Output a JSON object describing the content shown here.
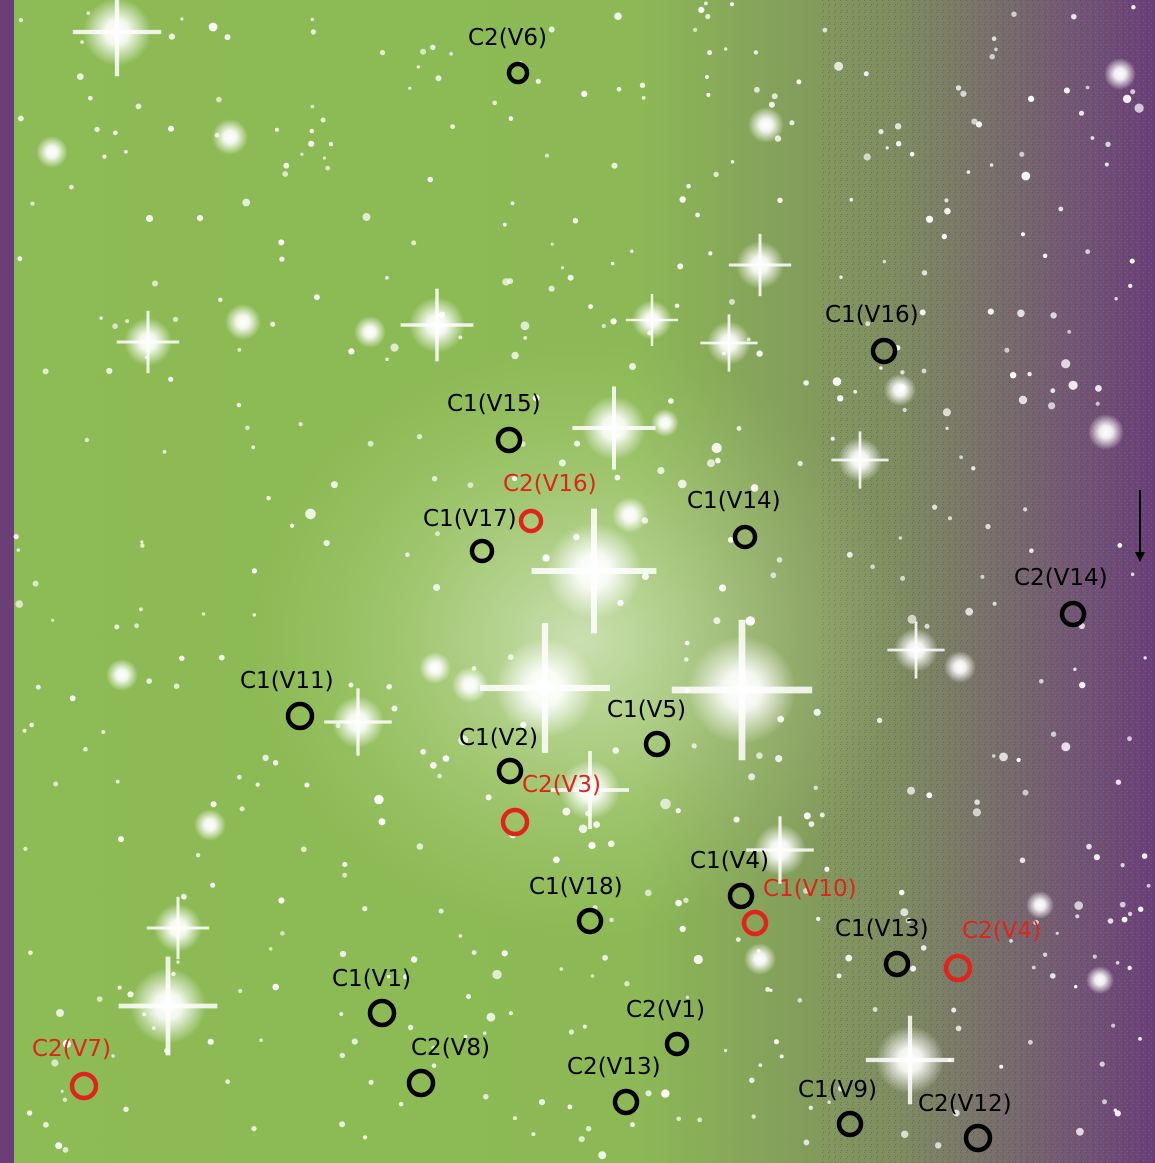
{
  "colors": {
    "field_green": "#8dbb55",
    "field_purple": "#6a3f78",
    "black_marker": "#000000",
    "red_marker": "#e0241b",
    "star": "#ffffff"
  },
  "markers": [
    {
      "id": "m-c2-v6",
      "label": "C2(V6)",
      "color": "black"
    },
    {
      "id": "m-c1-v16",
      "label": "C1(V16)",
      "color": "black"
    },
    {
      "id": "m-c1-v15",
      "label": "C1(V15)",
      "color": "black"
    },
    {
      "id": "m-c2-v16",
      "label": "C2(V16)",
      "color": "red"
    },
    {
      "id": "m-c1-v17",
      "label": "C1(V17)",
      "color": "black"
    },
    {
      "id": "m-c1-v14",
      "label": "C1(V14)",
      "color": "black"
    },
    {
      "id": "m-c2-v14",
      "label": "C2(V14)",
      "color": "black"
    },
    {
      "id": "m-c1-v11",
      "label": "C1(V11)",
      "color": "black"
    },
    {
      "id": "m-c1-v5",
      "label": "C1(V5)",
      "color": "black"
    },
    {
      "id": "m-c1-v2",
      "label": "C1(V2)",
      "color": "black"
    },
    {
      "id": "m-c2-v3",
      "label": "C2(V3)",
      "color": "red"
    },
    {
      "id": "m-c1-v4",
      "label": "C1(V4)",
      "color": "black"
    },
    {
      "id": "m-c1-v10",
      "label": "C1(V10)",
      "color": "red"
    },
    {
      "id": "m-c1-v18",
      "label": "C1(V18)",
      "color": "black"
    },
    {
      "id": "m-c1-v13",
      "label": "C1(V13)",
      "color": "black"
    },
    {
      "id": "m-c2-v4",
      "label": "C2(V4)",
      "color": "red"
    },
    {
      "id": "m-c1-v1",
      "label": "C1(V1)",
      "color": "black"
    },
    {
      "id": "m-c2-v1",
      "label": "C2(V1)",
      "color": "black"
    },
    {
      "id": "m-c2-v8",
      "label": "C2(V8)",
      "color": "black"
    },
    {
      "id": "m-c2-v13",
      "label": "C2(V13)",
      "color": "black"
    },
    {
      "id": "m-c2-v7",
      "label": "C2(V7)",
      "color": "red"
    },
    {
      "id": "m-c1-v9",
      "label": "C1(V9)",
      "color": "black"
    },
    {
      "id": "m-c2-v12",
      "label": "C2(V12)",
      "color": "black"
    }
  ]
}
